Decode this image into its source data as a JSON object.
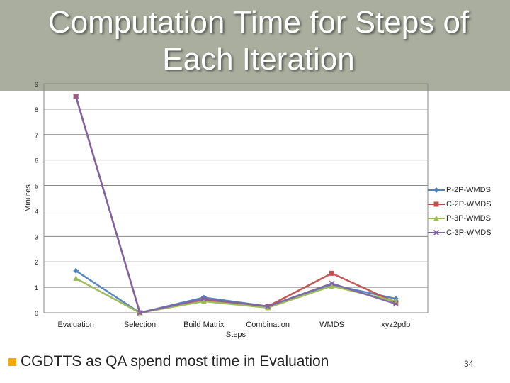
{
  "slide": {
    "title": "Computation Time for Steps of Each Iteration",
    "bullet_text": "CGDTTS as QA spend most time in Evaluation",
    "slide_number": "34"
  },
  "colors": {
    "title_band": "#a9ae9e",
    "bullet_marker": "#f2a900"
  },
  "chart_data": {
    "type": "line",
    "categories": [
      "Evaluation",
      "Selection",
      "Build Matrix",
      "Combination",
      "WMDS",
      "xyz2pdb"
    ],
    "xlabel": "Steps",
    "ylabel": "Minutes",
    "ylim": [
      0,
      9
    ],
    "yticks": [
      "0",
      "1",
      "2",
      "3",
      "4",
      "5",
      "6",
      "7",
      "8",
      "9"
    ],
    "grid": true,
    "legend_position": "right",
    "series": [
      {
        "name": "P-2P-WMDS",
        "color": "#4f81bd",
        "marker": "diamond",
        "values": [
          1.65,
          0.0,
          0.6,
          0.25,
          1.1,
          0.55
        ]
      },
      {
        "name": "C-2P-WMDS",
        "color": "#c0504d",
        "marker": "square",
        "values": [
          8.5,
          0.0,
          0.5,
          0.25,
          1.55,
          0.4
        ]
      },
      {
        "name": "P-3P-WMDS",
        "color": "#9bbb59",
        "marker": "triangle",
        "values": [
          1.35,
          0.0,
          0.45,
          0.2,
          1.05,
          0.45
        ]
      },
      {
        "name": "C-3P-WMDS",
        "color": "#8064a2",
        "marker": "x",
        "values": [
          8.5,
          0.0,
          0.55,
          0.25,
          1.15,
          0.35
        ]
      }
    ]
  }
}
